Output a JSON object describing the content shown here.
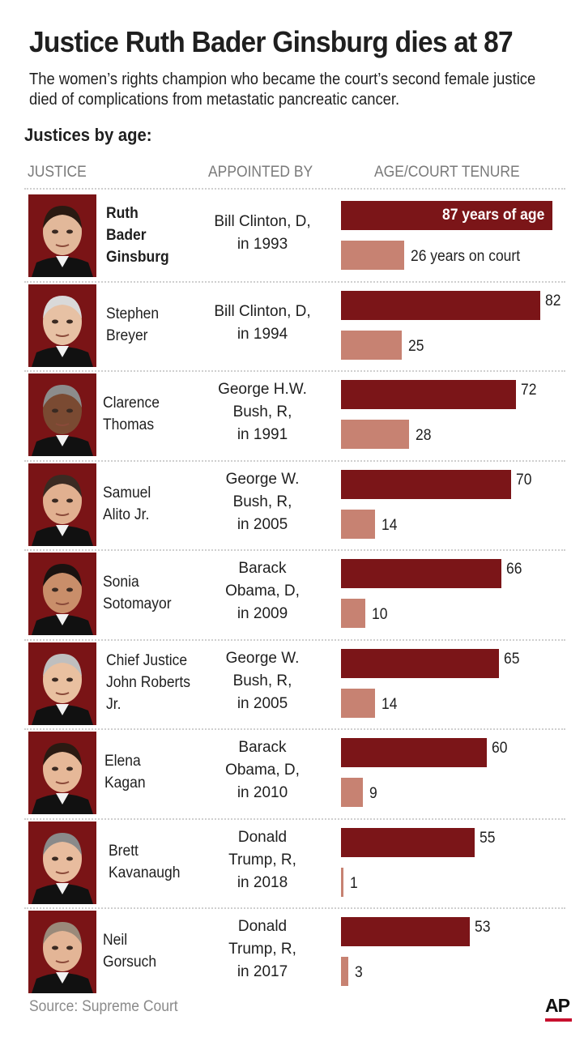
{
  "title": "Justice Ruth Bader Ginsburg dies at 87",
  "subtitle": "The women’s rights champion who became the court’s second female justice died of complications from metastatic pancreatic cancer.",
  "section_title": "Justices by age:",
  "columns": {
    "justice": "JUSTICE",
    "appointed": "APPOINTED BY",
    "age": "AGE/COURT TENURE"
  },
  "source": "Source: Supreme Court",
  "logo": "AP",
  "colors": {
    "age_bar": "#7b1518",
    "tenure_bar": "#c78272",
    "logo_accent": "#c8102e"
  },
  "chart_data": {
    "type": "bar",
    "title": "Justices by age:",
    "xlabel": "",
    "ylabel": "AGE/COURT TENURE",
    "categories": [
      "Ruth Bader Ginsburg",
      "Stephen Breyer",
      "Clarence Thomas",
      "Samuel Alito Jr.",
      "Sonia Sotomayor",
      "Chief Justice John Roberts Jr.",
      "Elena Kagan",
      "Brett Kavanaugh",
      "Neil Gorsuch"
    ],
    "series": [
      {
        "values": [
          87,
          82,
          72,
          70,
          66,
          65,
          60,
          55,
          53
        ]
      },
      {
        "values": [
          26,
          25,
          28,
          14,
          10,
          14,
          9,
          1,
          3
        ]
      }
    ]
  },
  "justices": [
    {
      "name_lines": [
        "Ruth",
        "Bader",
        "Ginsburg"
      ],
      "appointed_lines": [
        "Bill Clinton, D,",
        "in 1993"
      ],
      "age_label": "87 years of age",
      "tenure_label": "26 years on court"
    },
    {
      "name_lines": [
        "Stephen",
        "Breyer"
      ],
      "appointed_lines": [
        "Bill Clinton, D,",
        "in 1994"
      ],
      "age_label": "82",
      "tenure_label": "25"
    },
    {
      "name_lines": [
        "Clarence",
        "Thomas"
      ],
      "appointed_lines": [
        "George H.W.",
        "Bush, R,",
        "in 1991"
      ],
      "age_label": "72",
      "tenure_label": "28"
    },
    {
      "name_lines": [
        "Samuel",
        "Alito Jr."
      ],
      "appointed_lines": [
        "George W.",
        "Bush, R,",
        "in 2005"
      ],
      "age_label": "70",
      "tenure_label": "14"
    },
    {
      "name_lines": [
        "Sonia",
        "Sotomayor"
      ],
      "appointed_lines": [
        "Barack",
        "Obama, D,",
        "in 2009"
      ],
      "age_label": "66",
      "tenure_label": "10"
    },
    {
      "name_lines": [
        "Chief Justice",
        "John Roberts",
        "Jr."
      ],
      "appointed_lines": [
        "George W.",
        "Bush, R,",
        "in 2005"
      ],
      "age_label": "65",
      "tenure_label": "14"
    },
    {
      "name_lines": [
        "Elena",
        "Kagan"
      ],
      "appointed_lines": [
        "Barack",
        "Obama, D,",
        "in 2010"
      ],
      "age_label": "60",
      "tenure_label": "9"
    },
    {
      "name_lines": [
        "Brett",
        "Kavanaugh"
      ],
      "appointed_lines": [
        "Donald",
        "Trump, R,",
        "in 2018"
      ],
      "age_label": "55",
      "tenure_label": "1"
    },
    {
      "name_lines": [
        "Neil",
        "Gorsuch"
      ],
      "appointed_lines": [
        "Donald",
        "Trump, R,",
        "in 2017"
      ],
      "age_label": "53",
      "tenure_label": "3"
    }
  ]
}
